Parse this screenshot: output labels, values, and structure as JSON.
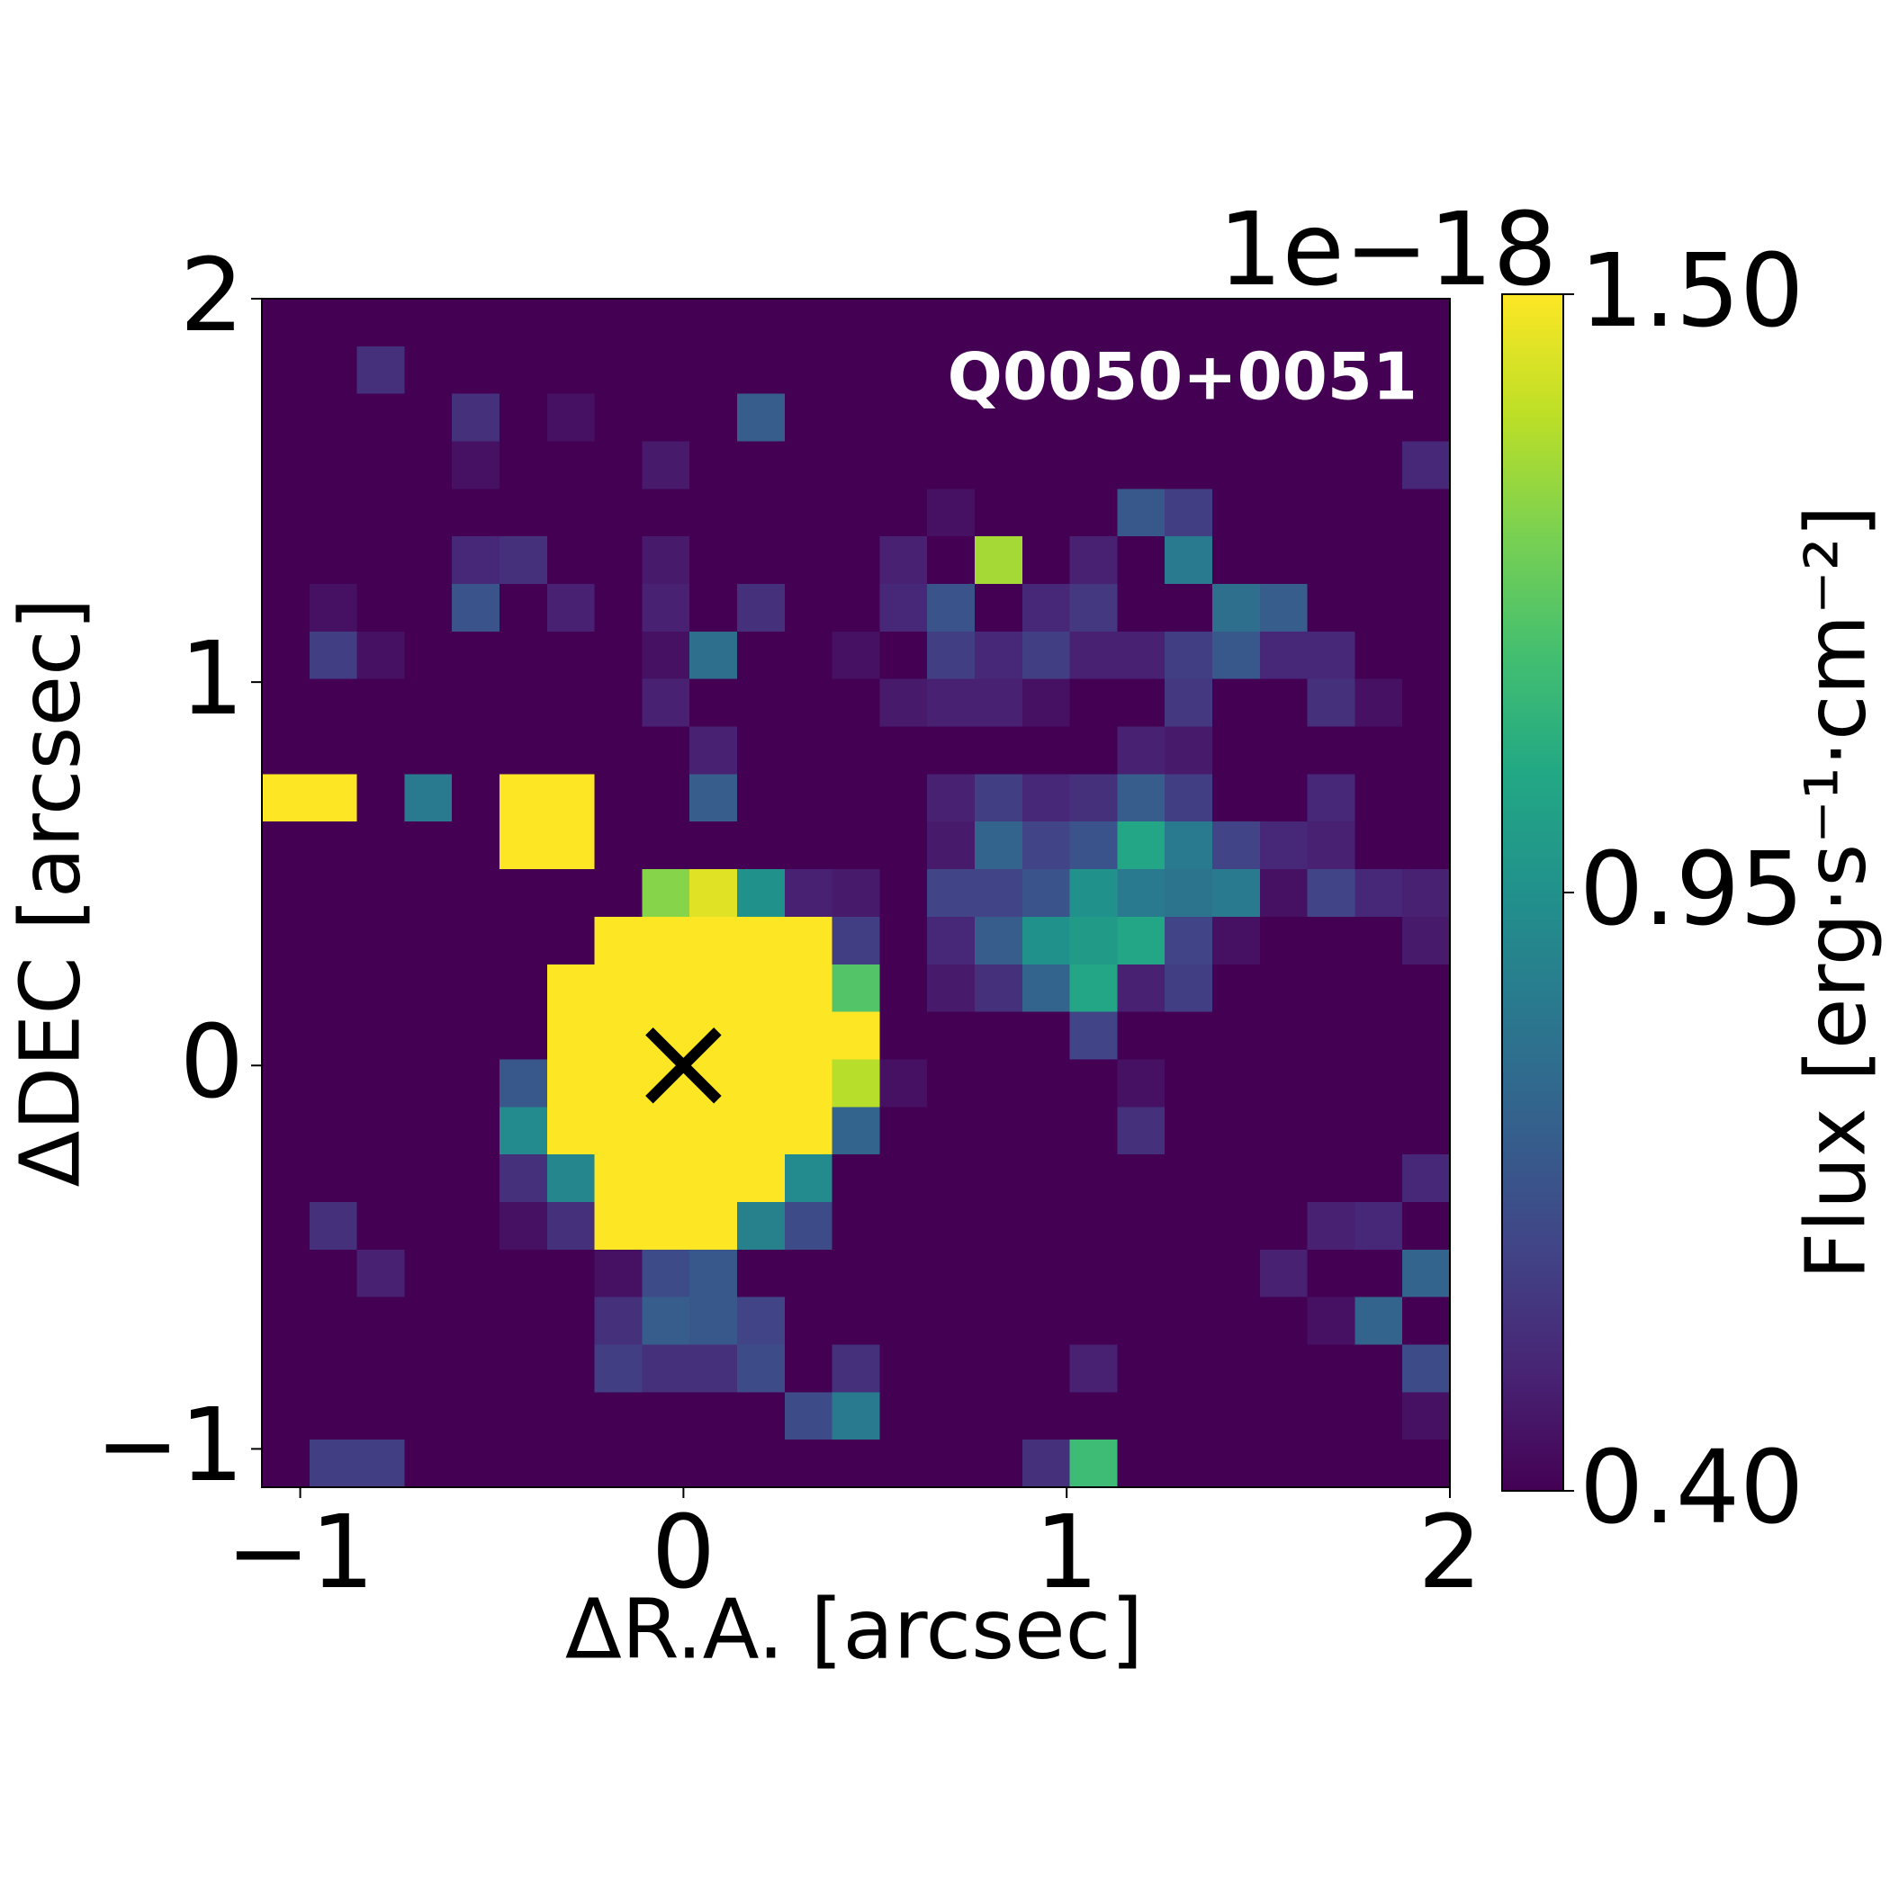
{
  "chart_data": {
    "type": "heatmap",
    "annotation": "Q0050+0051",
    "xlabel": "ΔR.A. [arcsec]",
    "ylabel": "ΔDEC [arcsec]",
    "colorbar_label": "Flux [erg·s⁻¹·cm⁻²]",
    "colorbar_offset": "1e−18",
    "colormap": "viridis",
    "clim": [
      0.4,
      1.5
    ],
    "cticks": [
      {
        "value": 0.4,
        "label": "0.40"
      },
      {
        "value": 0.95,
        "label": "0.95"
      },
      {
        "value": 1.5,
        "label": "1.50"
      }
    ],
    "xlim": [
      -1.1,
      2.0
    ],
    "ylim": [
      -1.1,
      2.0
    ],
    "xticks": [
      {
        "value": -1,
        "label": "−1"
      },
      0,
      1,
      2
    ],
    "yticks": [
      {
        "value": -1,
        "label": "−1"
      },
      0,
      1,
      2
    ],
    "marker": {
      "x": 0,
      "y": 0,
      "color": "#000000"
    },
    "x": [
      -1.038,
      -0.914,
      -0.79,
      -0.666,
      -0.542,
      -0.418,
      -0.294,
      -0.17,
      -0.046,
      0.078,
      0.202,
      0.326,
      0.45,
      0.574,
      0.698,
      0.822,
      0.946,
      1.07,
      1.194,
      1.318,
      1.442,
      1.566,
      1.69,
      1.814,
      1.938
    ],
    "y": [
      1.938,
      1.814,
      1.69,
      1.566,
      1.442,
      1.318,
      1.194,
      1.07,
      0.946,
      0.822,
      0.698,
      0.574,
      0.45,
      0.326,
      0.202,
      0.078,
      -0.046,
      -0.17,
      -0.294,
      -0.418,
      -0.542,
      -0.666,
      -0.79,
      -0.914,
      -1.038
    ],
    "z": [
      [
        0.3,
        0.3,
        0.3,
        0.3,
        0.3,
        0.3,
        0.3,
        0.3,
        0.3,
        0.3,
        0.3,
        0.3,
        0.3,
        0.3,
        0.3,
        0.3,
        0.3,
        0.3,
        0.3,
        0.3,
        0.3,
        0.3,
        0.3,
        0.3,
        0.3
      ],
      [
        0.3,
        0.3,
        0.55,
        0.3,
        0.3,
        0.3,
        0.3,
        0.3,
        0.3,
        0.3,
        0.3,
        0.3,
        0.3,
        0.3,
        0.3,
        0.3,
        0.3,
        0.3,
        0.3,
        0.3,
        0.3,
        0.3,
        0.3,
        0.3,
        0.3
      ],
      [
        0.3,
        0.3,
        0.3,
        0.3,
        0.55,
        0.3,
        0.45,
        0.3,
        0.3,
        0.3,
        0.72,
        0.3,
        0.3,
        0.3,
        0.3,
        0.3,
        0.3,
        0.3,
        0.3,
        0.3,
        0.3,
        0.3,
        0.3,
        0.3,
        0.3
      ],
      [
        0.3,
        0.3,
        0.3,
        0.3,
        0.45,
        0.3,
        0.3,
        0.3,
        0.48,
        0.3,
        0.3,
        0.3,
        0.3,
        0.3,
        0.3,
        0.3,
        0.3,
        0.3,
        0.3,
        0.3,
        0.3,
        0.3,
        0.3,
        0.3,
        0.52
      ],
      [
        0.3,
        0.3,
        0.3,
        0.3,
        0.3,
        0.3,
        0.3,
        0.3,
        0.3,
        0.3,
        0.3,
        0.3,
        0.3,
        0.3,
        0.45,
        0.3,
        0.3,
        0.3,
        0.7,
        0.6,
        0.3,
        0.3,
        0.3,
        0.3,
        0.3
      ],
      [
        0.3,
        0.3,
        0.3,
        0.3,
        0.52,
        0.55,
        0.3,
        0.3,
        0.48,
        0.3,
        0.3,
        0.3,
        0.3,
        0.5,
        0.3,
        1.35,
        0.3,
        0.5,
        0.3,
        0.85,
        0.3,
        0.3,
        0.3,
        0.3,
        0.3
      ],
      [
        0.3,
        0.45,
        0.3,
        0.3,
        0.68,
        0.3,
        0.5,
        0.3,
        0.5,
        0.3,
        0.55,
        0.3,
        0.3,
        0.52,
        0.68,
        0.3,
        0.52,
        0.58,
        0.3,
        0.3,
        0.8,
        0.72,
        0.3,
        0.3,
        0.3
      ],
      [
        0.3,
        0.6,
        0.45,
        0.3,
        0.3,
        0.3,
        0.3,
        0.3,
        0.45,
        0.8,
        0.3,
        0.3,
        0.45,
        0.3,
        0.6,
        0.52,
        0.6,
        0.5,
        0.5,
        0.6,
        0.7,
        0.52,
        0.52,
        0.3,
        0.3
      ],
      [
        0.3,
        0.3,
        0.3,
        0.3,
        0.3,
        0.3,
        0.3,
        0.3,
        0.5,
        0.3,
        0.3,
        0.3,
        0.3,
        0.48,
        0.5,
        0.5,
        0.45,
        0.3,
        0.3,
        0.58,
        0.3,
        0.3,
        0.55,
        0.45,
        0.3
      ],
      [
        0.3,
        0.3,
        0.3,
        0.3,
        0.3,
        0.3,
        0.3,
        0.3,
        0.3,
        0.5,
        0.3,
        0.3,
        0.3,
        0.3,
        0.3,
        0.3,
        0.3,
        0.3,
        0.5,
        0.48,
        0.3,
        0.3,
        0.3,
        0.3,
        0.3
      ],
      [
        1.6,
        1.6,
        0.3,
        0.85,
        0.3,
        1.6,
        1.6,
        0.3,
        0.3,
        0.72,
        0.3,
        0.3,
        0.3,
        0.3,
        0.5,
        0.6,
        0.52,
        0.55,
        0.72,
        0.6,
        0.3,
        0.3,
        0.52,
        0.3,
        0.3
      ],
      [
        0.3,
        0.3,
        0.3,
        0.3,
        0.3,
        1.6,
        1.6,
        0.3,
        0.3,
        0.3,
        0.3,
        0.3,
        0.3,
        0.3,
        0.48,
        0.75,
        0.62,
        0.68,
        1.05,
        0.85,
        0.62,
        0.52,
        0.5,
        0.3,
        0.3
      ],
      [
        0.3,
        0.3,
        0.3,
        0.3,
        0.3,
        0.3,
        0.3,
        0.3,
        1.3,
        1.45,
        0.95,
        0.5,
        0.48,
        0.3,
        0.62,
        0.62,
        0.68,
        0.95,
        0.85,
        0.82,
        0.85,
        0.45,
        0.62,
        0.52,
        0.5
      ],
      [
        0.3,
        0.3,
        0.3,
        0.3,
        0.3,
        0.3,
        0.3,
        1.6,
        1.6,
        1.6,
        1.6,
        1.5,
        0.6,
        0.3,
        0.52,
        0.72,
        0.95,
        1.0,
        1.05,
        0.62,
        0.45,
        0.3,
        0.3,
        0.3,
        0.48
      ],
      [
        0.3,
        0.3,
        0.3,
        0.3,
        0.3,
        0.3,
        1.6,
        1.6,
        1.6,
        1.6,
        1.6,
        1.6,
        1.2,
        0.3,
        0.48,
        0.55,
        0.75,
        1.05,
        0.5,
        0.6,
        0.3,
        0.3,
        0.3,
        0.3,
        0.3
      ],
      [
        0.3,
        0.3,
        0.3,
        0.3,
        0.3,
        0.3,
        1.6,
        1.6,
        1.6,
        1.6,
        1.6,
        1.6,
        1.6,
        0.3,
        0.3,
        0.3,
        0.3,
        0.62,
        0.3,
        0.3,
        0.3,
        0.3,
        0.3,
        0.3,
        0.3
      ],
      [
        0.3,
        0.3,
        0.3,
        0.3,
        0.3,
        0.7,
        1.6,
        1.6,
        1.6,
        1.6,
        1.6,
        1.6,
        1.38,
        0.45,
        0.3,
        0.3,
        0.3,
        0.3,
        0.45,
        0.3,
        0.3,
        0.3,
        0.3,
        0.3,
        0.3
      ],
      [
        0.3,
        0.3,
        0.3,
        0.3,
        0.3,
        0.92,
        1.6,
        1.6,
        1.6,
        1.6,
        1.6,
        1.6,
        0.75,
        0.3,
        0.3,
        0.3,
        0.3,
        0.3,
        0.55,
        0.3,
        0.3,
        0.3,
        0.3,
        0.3,
        0.3
      ],
      [
        0.3,
        0.3,
        0.3,
        0.3,
        0.3,
        0.55,
        0.9,
        1.6,
        1.6,
        1.6,
        1.6,
        0.92,
        0.3,
        0.3,
        0.3,
        0.3,
        0.3,
        0.3,
        0.3,
        0.3,
        0.3,
        0.3,
        0.3,
        0.3,
        0.52
      ],
      [
        0.3,
        0.55,
        0.3,
        0.3,
        0.3,
        0.45,
        0.55,
        1.6,
        1.6,
        1.6,
        0.88,
        0.65,
        0.3,
        0.3,
        0.3,
        0.3,
        0.3,
        0.3,
        0.3,
        0.3,
        0.3,
        0.3,
        0.5,
        0.52,
        0.3
      ],
      [
        0.3,
        0.3,
        0.5,
        0.3,
        0.3,
        0.3,
        0.3,
        0.45,
        0.65,
        0.7,
        0.3,
        0.3,
        0.3,
        0.3,
        0.3,
        0.3,
        0.3,
        0.3,
        0.3,
        0.3,
        0.3,
        0.5,
        0.3,
        0.3,
        0.75
      ],
      [
        0.3,
        0.3,
        0.3,
        0.3,
        0.3,
        0.3,
        0.3,
        0.55,
        0.72,
        0.7,
        0.62,
        0.3,
        0.3,
        0.3,
        0.3,
        0.3,
        0.3,
        0.3,
        0.3,
        0.3,
        0.3,
        0.3,
        0.45,
        0.75,
        0.3
      ],
      [
        0.3,
        0.3,
        0.3,
        0.3,
        0.3,
        0.3,
        0.3,
        0.6,
        0.55,
        0.55,
        0.65,
        0.3,
        0.55,
        0.3,
        0.3,
        0.3,
        0.3,
        0.5,
        0.3,
        0.3,
        0.3,
        0.3,
        0.3,
        0.3,
        0.65
      ],
      [
        0.3,
        0.3,
        0.3,
        0.3,
        0.3,
        0.3,
        0.3,
        0.3,
        0.3,
        0.3,
        0.3,
        0.65,
        0.85,
        0.3,
        0.3,
        0.3,
        0.3,
        0.3,
        0.3,
        0.3,
        0.3,
        0.3,
        0.3,
        0.3,
        0.45
      ],
      [
        0.3,
        0.6,
        0.6,
        0.3,
        0.3,
        0.3,
        0.3,
        0.3,
        0.3,
        0.3,
        0.3,
        0.3,
        0.3,
        0.3,
        0.3,
        0.3,
        0.55,
        1.15,
        0.3,
        0.3,
        0.3,
        0.3,
        0.3,
        0.3,
        0.3
      ]
    ]
  }
}
